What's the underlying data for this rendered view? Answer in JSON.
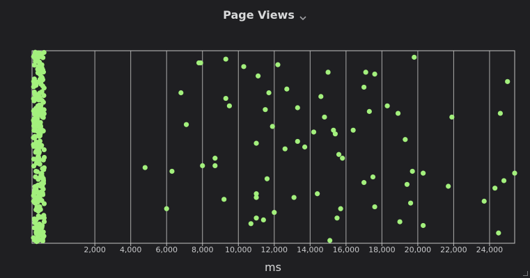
{
  "panel": {
    "title": "Page Views",
    "menu_icon": "chevron-down-icon"
  },
  "colors": {
    "background": "#1f1f22",
    "point": "#a3f07d",
    "grid": "#c4c4c4",
    "text": "#d8d9da"
  },
  "chart_data": {
    "type": "scatter",
    "xlabel": "ms",
    "ylabel": "",
    "xlim": [
      -1500,
      25400
    ],
    "ylim": [
      0,
      1
    ],
    "xticks": [
      2000,
      4000,
      6000,
      8000,
      10000,
      12000,
      14000,
      16000,
      18000,
      20000,
      22000,
      24000
    ],
    "xtick_labels": [
      "2,000",
      "4,000",
      "6,000",
      "8,000",
      "10,000",
      "12,000",
      "14,000",
      "16,000",
      "18,000",
      "20,000",
      "22,000",
      "24,000"
    ],
    "grid": true,
    "legend": "none",
    "series": [
      {
        "points": [
          [
            4800,
            0.39
          ],
          [
            6000,
            0.17
          ],
          [
            6300,
            0.37
          ],
          [
            6800,
            0.79
          ],
          [
            7100,
            0.62
          ],
          [
            7800,
            0.95
          ],
          [
            7900,
            0.95
          ],
          [
            8000,
            0.4
          ],
          [
            8700,
            0.44
          ],
          [
            8700,
            0.4
          ],
          [
            9200,
            0.22
          ],
          [
            9300,
            0.97
          ],
          [
            9300,
            0.76
          ],
          [
            9500,
            0.72
          ],
          [
            10300,
            0.93
          ],
          [
            10700,
            0.09
          ],
          [
            11000,
            0.12
          ],
          [
            11000,
            0.23
          ],
          [
            11000,
            0.52
          ],
          [
            11000,
            0.25
          ],
          [
            11100,
            0.88
          ],
          [
            11400,
            0.11
          ],
          [
            11500,
            0.7
          ],
          [
            11600,
            0.33
          ],
          [
            11700,
            0.79
          ],
          [
            11900,
            0.61
          ],
          [
            12000,
            0.15
          ],
          [
            12200,
            0.94
          ],
          [
            12600,
            0.49
          ],
          [
            12700,
            0.81
          ],
          [
            13100,
            0.23
          ],
          [
            13300,
            0.53
          ],
          [
            13300,
            0.71
          ],
          [
            13700,
            0.5
          ],
          [
            14200,
            0.58
          ],
          [
            14400,
            0.25
          ],
          [
            14600,
            0.77
          ],
          [
            14800,
            0.66
          ],
          [
            15000,
            0.9
          ],
          [
            15100,
            0.0
          ],
          [
            15300,
            0.59
          ],
          [
            15400,
            0.57
          ],
          [
            15500,
            0.12
          ],
          [
            15600,
            0.46
          ],
          [
            15700,
            0.17
          ],
          [
            15800,
            0.44
          ],
          [
            16400,
            0.59
          ],
          [
            17000,
            0.82
          ],
          [
            17000,
            0.31
          ],
          [
            17100,
            0.9
          ],
          [
            17300,
            0.69
          ],
          [
            17500,
            0.34
          ],
          [
            17600,
            0.18
          ],
          [
            17600,
            0.89
          ],
          [
            18300,
            0.72
          ],
          [
            18900,
            0.68
          ],
          [
            19000,
            0.1
          ],
          [
            19300,
            0.54
          ],
          [
            19400,
            0.3
          ],
          [
            19600,
            0.2
          ],
          [
            19700,
            0.37
          ],
          [
            19800,
            0.98
          ],
          [
            20300,
            0.08
          ],
          [
            20300,
            0.36
          ],
          [
            21700,
            0.29
          ],
          [
            21900,
            0.66
          ],
          [
            23700,
            0.21
          ],
          [
            24300,
            0.28
          ],
          [
            24500,
            0.04
          ],
          [
            24600,
            0.68
          ],
          [
            24800,
            0.32
          ],
          [
            25000,
            0.85
          ],
          [
            25400,
            0.36
          ]
        ]
      }
    ]
  }
}
